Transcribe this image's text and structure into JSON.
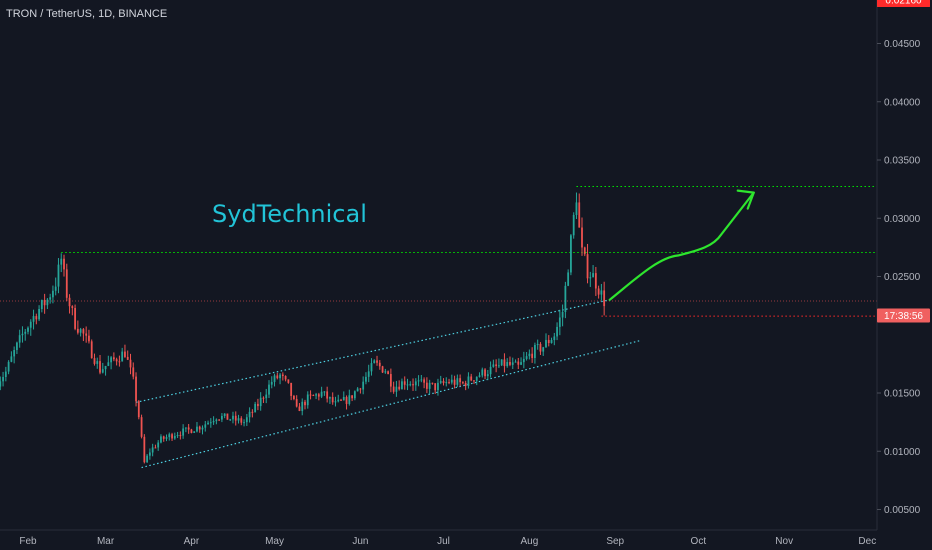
{
  "header": {
    "symbol_title": "TRON / TetherUS, 1D, BINANCE"
  },
  "annotation": {
    "brand": "SydTechnical"
  },
  "colors": {
    "background": "#131722",
    "up": "#26a69a",
    "down": "#ef5350",
    "grid": "#1e2230",
    "channel": "#4dd0e1",
    "target": "#00e600",
    "price_line": "#ef5350",
    "stop": "#ff2a2a",
    "countdown": "#f06060",
    "arrow": "#2ee52e"
  },
  "chart_data": {
    "type": "candlestick",
    "timeframe": "1D",
    "x_ticks": [
      "Feb",
      "Mar",
      "Apr",
      "May",
      "Jun",
      "Jul",
      "Aug",
      "Sep",
      "Oct",
      "Nov",
      "Dec"
    ],
    "y_ticks": [
      "0.04500",
      "0.04000",
      "0.03500",
      "0.03000",
      "0.02500",
      "0.01500",
      "0.01000",
      "0.00500"
    ],
    "ylim": [
      0.0045,
      0.0485
    ],
    "grid": false,
    "last_price": "0.02290",
    "countdown": "17:38:56",
    "levels": [
      {
        "name": "upper-target",
        "value": 0.03272,
        "label": "0.03272",
        "style": "dotted-green"
      },
      {
        "name": "lower-target",
        "value": 0.02706,
        "label": "0.02706",
        "style": "dotted-green"
      },
      {
        "name": "stop-level",
        "value": 0.0216,
        "label": "0.02160",
        "style": "dotted-red"
      }
    ],
    "price_path": [
      [
        "2021-01-21",
        0.016
      ],
      [
        "2021-01-24",
        0.0168
      ],
      [
        "2021-01-27",
        0.0185
      ],
      [
        "2021-01-30",
        0.02
      ],
      [
        "2021-02-02",
        0.0212
      ],
      [
        "2021-02-05",
        0.0222
      ],
      [
        "2021-02-08",
        0.023
      ],
      [
        "2021-02-11",
        0.0245
      ],
      [
        "2021-02-13",
        0.0265
      ],
      [
        "2021-02-15",
        0.0235
      ],
      [
        "2021-02-18",
        0.021
      ],
      [
        "2021-02-21",
        0.02
      ],
      [
        "2021-02-24",
        0.0185
      ],
      [
        "2021-02-27",
        0.017
      ],
      [
        "2021-03-02",
        0.0175
      ],
      [
        "2021-03-05",
        0.018
      ],
      [
        "2021-03-08",
        0.0185
      ],
      [
        "2021-03-11",
        0.016
      ],
      [
        "2021-03-13",
        0.013
      ],
      [
        "2021-03-15",
        0.009
      ],
      [
        "2021-03-17",
        0.01
      ],
      [
        "2021-03-21",
        0.011
      ],
      [
        "2021-03-26",
        0.0115
      ],
      [
        "2021-03-31",
        0.0118
      ],
      [
        "2021-04-05",
        0.0122
      ],
      [
        "2021-04-10",
        0.013
      ],
      [
        "2021-04-15",
        0.0128
      ],
      [
        "2021-04-20",
        0.0125
      ],
      [
        "2021-04-25",
        0.014
      ],
      [
        "2021-04-30",
        0.016
      ],
      [
        "2021-05-03",
        0.0165
      ],
      [
        "2021-05-06",
        0.0155
      ],
      [
        "2021-05-09",
        0.0135
      ],
      [
        "2021-05-13",
        0.0145
      ],
      [
        "2021-05-18",
        0.015
      ],
      [
        "2021-05-23",
        0.014
      ],
      [
        "2021-05-28",
        0.0145
      ],
      [
        "2021-06-02",
        0.016
      ],
      [
        "2021-06-06",
        0.0175
      ],
      [
        "2021-06-10",
        0.017
      ],
      [
        "2021-06-13",
        0.0155
      ],
      [
        "2021-06-17",
        0.016
      ],
      [
        "2021-06-22",
        0.0158
      ],
      [
        "2021-06-28",
        0.0155
      ],
      [
        "2021-07-03",
        0.016
      ],
      [
        "2021-07-08",
        0.0158
      ],
      [
        "2021-07-13",
        0.0165
      ],
      [
        "2021-07-18",
        0.017
      ],
      [
        "2021-07-23",
        0.0175
      ],
      [
        "2021-07-28",
        0.0172
      ],
      [
        "2021-08-02",
        0.0185
      ],
      [
        "2021-08-06",
        0.019
      ],
      [
        "2021-08-10",
        0.02
      ],
      [
        "2021-08-13",
        0.022
      ],
      [
        "2021-08-16",
        0.028
      ],
      [
        "2021-08-18",
        0.032
      ],
      [
        "2021-08-19",
        0.029
      ],
      [
        "2021-08-20",
        0.027
      ],
      [
        "2021-08-22",
        0.0255
      ],
      [
        "2021-08-24",
        0.025
      ],
      [
        "2021-08-26",
        0.024
      ],
      [
        "2021-08-28",
        0.0229
      ]
    ],
    "channel": {
      "upper": [
        [
          "2021-03-12",
          0.0142
        ],
        [
          "2021-08-30",
          0.023
        ]
      ],
      "lower": [
        [
          "2021-03-14",
          0.0086
        ],
        [
          "2021-09-10",
          0.0195
        ]
      ]
    },
    "projection_arrow": [
      [
        "2021-08-30",
        0.023
      ],
      [
        "2021-09-20",
        0.0268
      ],
      [
        "2021-10-05",
        0.0276
      ],
      [
        "2021-10-21",
        0.0322
      ]
    ]
  }
}
